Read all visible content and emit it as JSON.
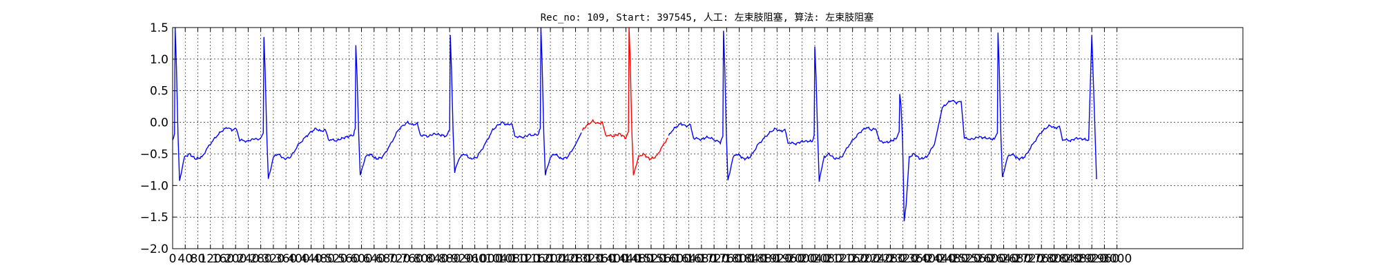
{
  "chart_data": {
    "type": "line",
    "title": "Rec_no: 109, Start: 397545, 人工: 左束肢阻塞, 算法: 左束肢阻塞",
    "xlabel": "",
    "ylabel": "",
    "xlim": [
      0,
      3400
    ],
    "ylim": [
      -2.0,
      1.5
    ],
    "grid": true,
    "yticks": [
      -2.0,
      -1.5,
      -1.0,
      -0.5,
      0.0,
      0.5,
      1.0,
      1.5
    ],
    "ytick_labels": [
      "−2.0",
      "−1.5",
      "−1.0",
      "−0.5",
      "0.0",
      "0.5",
      "1.0",
      "1.5"
    ],
    "xticks": [
      0,
      40,
      80,
      120,
      160,
      200,
      240,
      280,
      320,
      360,
      400,
      440,
      480,
      520,
      560,
      600,
      640,
      680,
      720,
      760,
      800,
      840,
      880,
      920,
      960,
      1000,
      1040,
      1080,
      1120,
      1160,
      1200,
      1240,
      1280,
      1320,
      1360,
      1400,
      1440,
      1480,
      1520,
      1560,
      1600,
      1640,
      1680,
      1720,
      1760,
      1800,
      1840,
      1880,
      1920,
      1960,
      2000,
      2040,
      2080,
      2120,
      2160,
      2200,
      2240,
      2280,
      2320,
      2360,
      2400,
      2440,
      2480,
      2520,
      2560,
      2600,
      2640,
      2680,
      2720,
      2760,
      2800,
      2840,
      2880,
      2920,
      2960,
      3000
    ],
    "xtick_labels": [
      "0",
      "40",
      "80",
      "120",
      "160",
      "200",
      "240",
      "280",
      "320",
      "360",
      "400",
      "440",
      "480",
      "520",
      "560",
      "600",
      "640",
      "680",
      "720",
      "760",
      "800",
      "840",
      "880",
      "920",
      "960",
      "1000",
      "1040",
      "1080",
      "1120",
      "1160",
      "1200",
      "1240",
      "1280",
      "1320",
      "1360",
      "1400",
      "1440",
      "1480",
      "1520",
      "1560",
      "1600",
      "1640",
      "1680",
      "1720",
      "1760",
      "1800",
      "1840",
      "1880",
      "1920",
      "1960",
      "2000",
      "2040",
      "2080",
      "2120",
      "2160",
      "2200",
      "2240",
      "2280",
      "2320",
      "2360",
      "2400",
      "2440",
      "2480",
      "2520",
      "2560",
      "2600",
      "2640",
      "2680",
      "2720",
      "2760",
      "2800",
      "2840",
      "2880",
      "2920",
      "2960",
      "3000"
    ],
    "baseline_points": [
      [
        0,
        1.3
      ],
      [
        8,
        1.5
      ],
      [
        14,
        0.6
      ],
      [
        20,
        -0.6
      ],
      [
        28,
        -0.92
      ],
      [
        35,
        -0.8
      ],
      [
        45,
        -0.55
      ],
      [
        55,
        -0.5
      ],
      [
        70,
        -0.55
      ],
      [
        90,
        -0.6
      ],
      [
        110,
        -0.55
      ],
      [
        130,
        -0.4
      ],
      [
        150,
        -0.22
      ],
      [
        170,
        -0.1
      ],
      [
        190,
        -0.1
      ],
      [
        210,
        -0.12
      ],
      [
        230,
        -0.1
      ],
      [
        250,
        -0.15
      ],
      [
        262,
        -0.1
      ],
      [
        272,
        -0.3
      ],
      [
        290,
        -0.3
      ],
      [
        310,
        -0.28
      ],
      [
        340,
        -0.3
      ],
      [
        360,
        -0.28
      ],
      [
        372,
        -0.25
      ],
      [
        385,
        -0.22
      ],
      [
        395,
        -0.3
      ],
      [
        420,
        -0.52
      ],
      [
        440,
        -0.55
      ],
      [
        460,
        -0.58
      ],
      [
        480,
        -0.5
      ],
      [
        500,
        -0.35
      ],
      [
        520,
        -0.2
      ],
      [
        540,
        -0.12
      ],
      [
        560,
        -0.12
      ],
      [
        580,
        -0.15
      ],
      [
        600,
        -0.1
      ],
      [
        612,
        -0.2
      ],
      [
        630,
        -0.28
      ],
      [
        650,
        -0.3
      ],
      [
        670,
        -0.28
      ],
      [
        690,
        -0.27
      ],
      [
        700,
        -0.3
      ],
      [
        720,
        -0.55
      ],
      [
        740,
        -0.5
      ],
      [
        760,
        -0.55
      ],
      [
        780,
        -0.45
      ],
      [
        800,
        -0.25
      ],
      [
        820,
        -0.1
      ],
      [
        840,
        -0.02
      ],
      [
        860,
        -0.05
      ],
      [
        880,
        -0.0
      ],
      [
        900,
        -0.02
      ],
      [
        915,
        -0.22
      ],
      [
        940,
        -0.2
      ],
      [
        965,
        -0.22
      ],
      [
        980,
        -0.18
      ],
      [
        990,
        -0.22
      ],
      [
        1010,
        -0.6
      ],
      [
        1030,
        -0.42
      ],
      [
        1050,
        -0.45
      ],
      [
        1070,
        -0.4
      ],
      [
        1090,
        -0.2
      ],
      [
        1110,
        -0.05
      ],
      [
        1130,
        0.0
      ],
      [
        1150,
        -0.05
      ],
      [
        1170,
        -0.02
      ],
      [
        1190,
        -0.05
      ],
      [
        1205,
        -0.22
      ],
      [
        1230,
        -0.22
      ],
      [
        1250,
        -0.2
      ],
      [
        1270,
        -0.22
      ],
      [
        1282,
        -0.15
      ],
      [
        1300,
        -0.6
      ],
      [
        1320,
        -0.45
      ],
      [
        1340,
        -0.45
      ],
      [
        1360,
        -0.5
      ],
      [
        1380,
        -0.35
      ],
      [
        1400,
        -0.15
      ],
      [
        1420,
        0.0
      ],
      [
        1440,
        0.02
      ],
      [
        1460,
        -0.02
      ]
    ],
    "waveform": {
      "beats": [
        {
          "start": 0,
          "peak": 1.5,
          "dip": -0.92,
          "peak_x": 8,
          "t_hump": -0.08,
          "pause": -0.28
        },
        {
          "start": 278,
          "peak": 1.35,
          "dip": -0.9,
          "peak_x": 290,
          "t_hump": -0.1,
          "pause": -0.27
        },
        {
          "start": 575,
          "peak": 1.22,
          "dip": -0.85,
          "peak_x": 582,
          "t_hump": 0.0,
          "pause": -0.2
        },
        {
          "start": 870,
          "peak": 1.38,
          "dip": -0.8,
          "peak_x": 882,
          "t_hump": 0.0,
          "pause": -0.22
        },
        {
          "start": 1160,
          "peak": 1.5,
          "dip": -0.84,
          "peak_x": 1170,
          "t_hump": 0.02,
          "pause": -0.2
        },
        {
          "start": 1440,
          "peak": 1.52,
          "dip": -0.84,
          "peak_x": 1450,
          "t_hump": -0.02,
          "pause": -0.25
        },
        {
          "start": 1740,
          "peak": 1.45,
          "dip": -0.93,
          "peak_x": 1750,
          "t_hump": -0.1,
          "pause": -0.32
        },
        {
          "start": 2032,
          "peak": 1.2,
          "dip": -0.92,
          "peak_x": 2040,
          "t_hump": -0.08,
          "pause": -0.3
        },
        {
          "start": 2298,
          "peak": 0.44,
          "dip": -1.55,
          "peak_x": 2310,
          "t_hump": 0.35,
          "pause": -0.25
        },
        {
          "start": 2610,
          "peak": 1.42,
          "dip": -0.88,
          "peak_x": 2622,
          "t_hump": -0.05,
          "pause": -0.27
        },
        {
          "start": 2910,
          "peak": 1.38,
          "dip": -0.9,
          "peak_x": 2920,
          "t_hump": 0.0,
          "pause": -0.9
        }
      ],
      "end_x": 2935,
      "highlight_range": [
        1300,
        1575
      ]
    },
    "series": [
      {
        "color": "#0000ff"
      },
      {
        "color": "#ff0000"
      }
    ]
  }
}
